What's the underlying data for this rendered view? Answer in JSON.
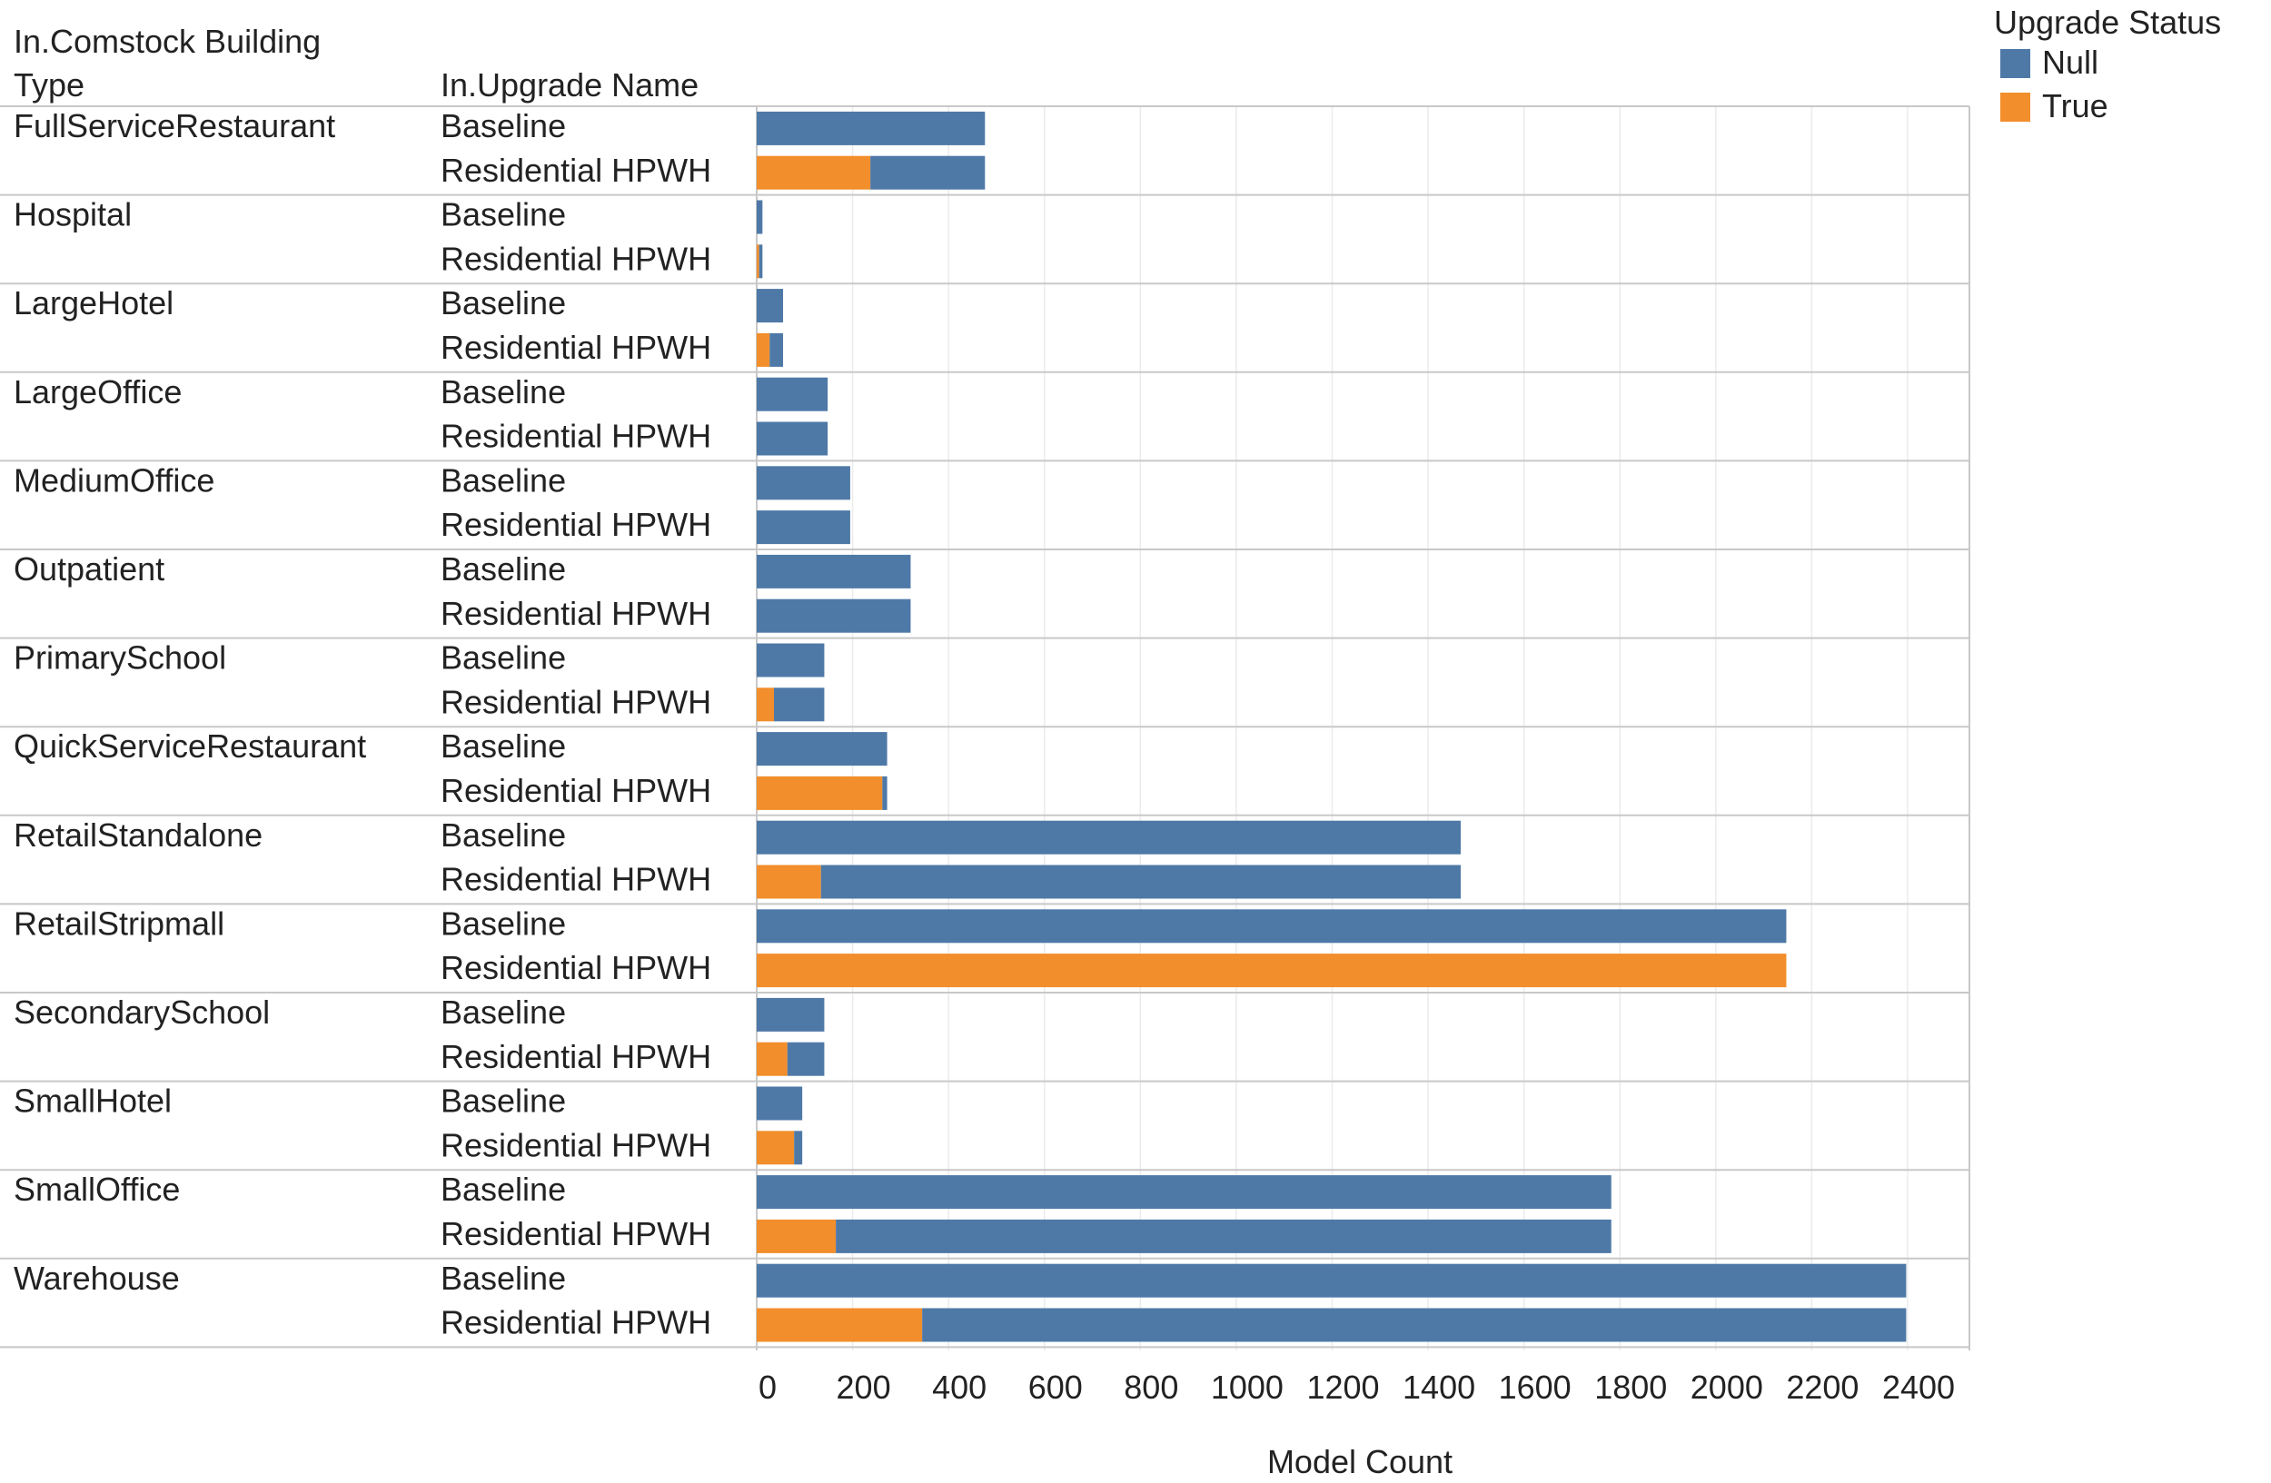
{
  "chart_data": {
    "type": "bar",
    "orientation": "horizontal",
    "stacked": true,
    "header": {
      "col1_line1": "In.Comstock Building",
      "col1_line2": "Type",
      "col2": "In.Upgrade Name"
    },
    "xlabel": "Model Count",
    "xlim": [
      0,
      2500
    ],
    "xticks": [
      0,
      200,
      400,
      600,
      800,
      1000,
      1200,
      1400,
      1600,
      1800,
      2000,
      2200,
      2400
    ],
    "grid": true,
    "legend": {
      "title": "Upgrade Status",
      "position": "top-right",
      "items": [
        {
          "name": "Null",
          "color": "#4e79a7"
        },
        {
          "name": "True",
          "color": "#f28e2b"
        }
      ]
    },
    "groups": [
      {
        "building_type": "FullServiceRestaurant",
        "rows": [
          {
            "upgrade": "Baseline",
            "null": 476,
            "true": 0
          },
          {
            "upgrade": "Residential HPWH",
            "null": 239,
            "true": 237
          }
        ]
      },
      {
        "building_type": "Hospital",
        "rows": [
          {
            "upgrade": "Baseline",
            "null": 12,
            "true": 0
          },
          {
            "upgrade": "Residential HPWH",
            "null": 7,
            "true": 5
          }
        ]
      },
      {
        "building_type": "LargeHotel",
        "rows": [
          {
            "upgrade": "Baseline",
            "null": 55,
            "true": 0
          },
          {
            "upgrade": "Residential HPWH",
            "null": 28,
            "true": 27
          }
        ]
      },
      {
        "building_type": "LargeOffice",
        "rows": [
          {
            "upgrade": "Baseline",
            "null": 148,
            "true": 0
          },
          {
            "upgrade": "Residential HPWH",
            "null": 148,
            "true": 0
          }
        ]
      },
      {
        "building_type": "MediumOffice",
        "rows": [
          {
            "upgrade": "Baseline",
            "null": 195,
            "true": 0
          },
          {
            "upgrade": "Residential HPWH",
            "null": 195,
            "true": 0
          }
        ]
      },
      {
        "building_type": "Outpatient",
        "rows": [
          {
            "upgrade": "Baseline",
            "null": 321,
            "true": 0
          },
          {
            "upgrade": "Residential HPWH",
            "null": 321,
            "true": 0
          }
        ]
      },
      {
        "building_type": "PrimarySchool",
        "rows": [
          {
            "upgrade": "Baseline",
            "null": 141,
            "true": 0
          },
          {
            "upgrade": "Residential HPWH",
            "null": 105,
            "true": 36
          }
        ]
      },
      {
        "building_type": "QuickServiceRestaurant",
        "rows": [
          {
            "upgrade": "Baseline",
            "null": 272,
            "true": 0
          },
          {
            "upgrade": "Residential HPWH",
            "null": 10,
            "true": 262
          }
        ]
      },
      {
        "building_type": "RetailStandalone",
        "rows": [
          {
            "upgrade": "Baseline",
            "null": 1468,
            "true": 0
          },
          {
            "upgrade": "Residential HPWH",
            "null": 1334,
            "true": 134
          }
        ]
      },
      {
        "building_type": "RetailStripmall",
        "rows": [
          {
            "upgrade": "Baseline",
            "null": 2147,
            "true": 0
          },
          {
            "upgrade": "Residential HPWH",
            "null": 0,
            "true": 2147
          }
        ]
      },
      {
        "building_type": "SecondarySchool",
        "rows": [
          {
            "upgrade": "Baseline",
            "null": 141,
            "true": 0
          },
          {
            "upgrade": "Residential HPWH",
            "null": 77,
            "true": 64
          }
        ]
      },
      {
        "building_type": "SmallHotel",
        "rows": [
          {
            "upgrade": "Baseline",
            "null": 95,
            "true": 0
          },
          {
            "upgrade": "Residential HPWH",
            "null": 17,
            "true": 78
          }
        ]
      },
      {
        "building_type": "SmallOffice",
        "rows": [
          {
            "upgrade": "Baseline",
            "null": 1782,
            "true": 0
          },
          {
            "upgrade": "Residential HPWH",
            "null": 1617,
            "true": 165
          }
        ]
      },
      {
        "building_type": "Warehouse",
        "rows": [
          {
            "upgrade": "Baseline",
            "null": 2397,
            "true": 0
          },
          {
            "upgrade": "Residential HPWH",
            "null": 2052,
            "true": 345
          }
        ]
      }
    ]
  }
}
